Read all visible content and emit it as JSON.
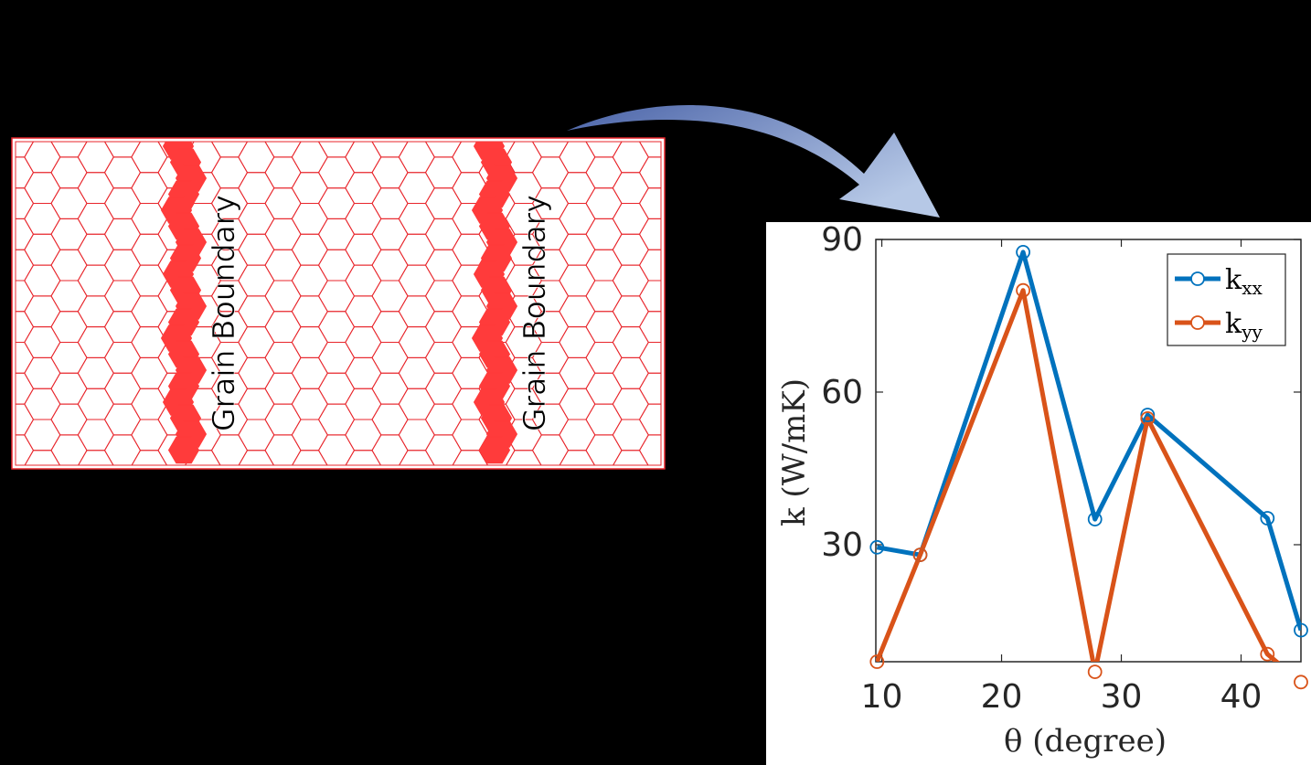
{
  "structure_panel": {
    "boundary_labels": [
      "Grain Boundary",
      "Grain Boundary"
    ],
    "lattice_color": "#e8252b",
    "boundary_color": "#ff3b3b"
  },
  "arrow": {
    "color_start": "#4a63a8",
    "color_end": "#b6c8e6"
  },
  "chart_data": {
    "type": "line",
    "xlabel": "θ (degree)",
    "ylabel": "k (W/mK)",
    "xlim": [
      9.5,
      45
    ],
    "ylim": [
      7,
      90
    ],
    "xticks": [
      10,
      20,
      30,
      40
    ],
    "yticks": [
      30,
      60,
      90
    ],
    "grid": false,
    "legend_position": "top-right",
    "series": [
      {
        "name": "k",
        "subscript": "xx",
        "color": "#0072bd",
        "x": [
          9.6,
          13.2,
          21.8,
          27.8,
          32.2,
          42.2,
          45
        ],
        "y": [
          29.5,
          28.0,
          87.5,
          35.0,
          55.5,
          35.2,
          13.2
        ]
      },
      {
        "name": "k",
        "subscript": "yy",
        "color": "#d95319",
        "x": [
          9.6,
          13.2,
          21.8,
          27.8,
          32.2,
          42.2,
          45
        ],
        "y": [
          7.0,
          28.0,
          80.0,
          5.0,
          54.8,
          8.5,
          3.0
        ]
      }
    ]
  }
}
